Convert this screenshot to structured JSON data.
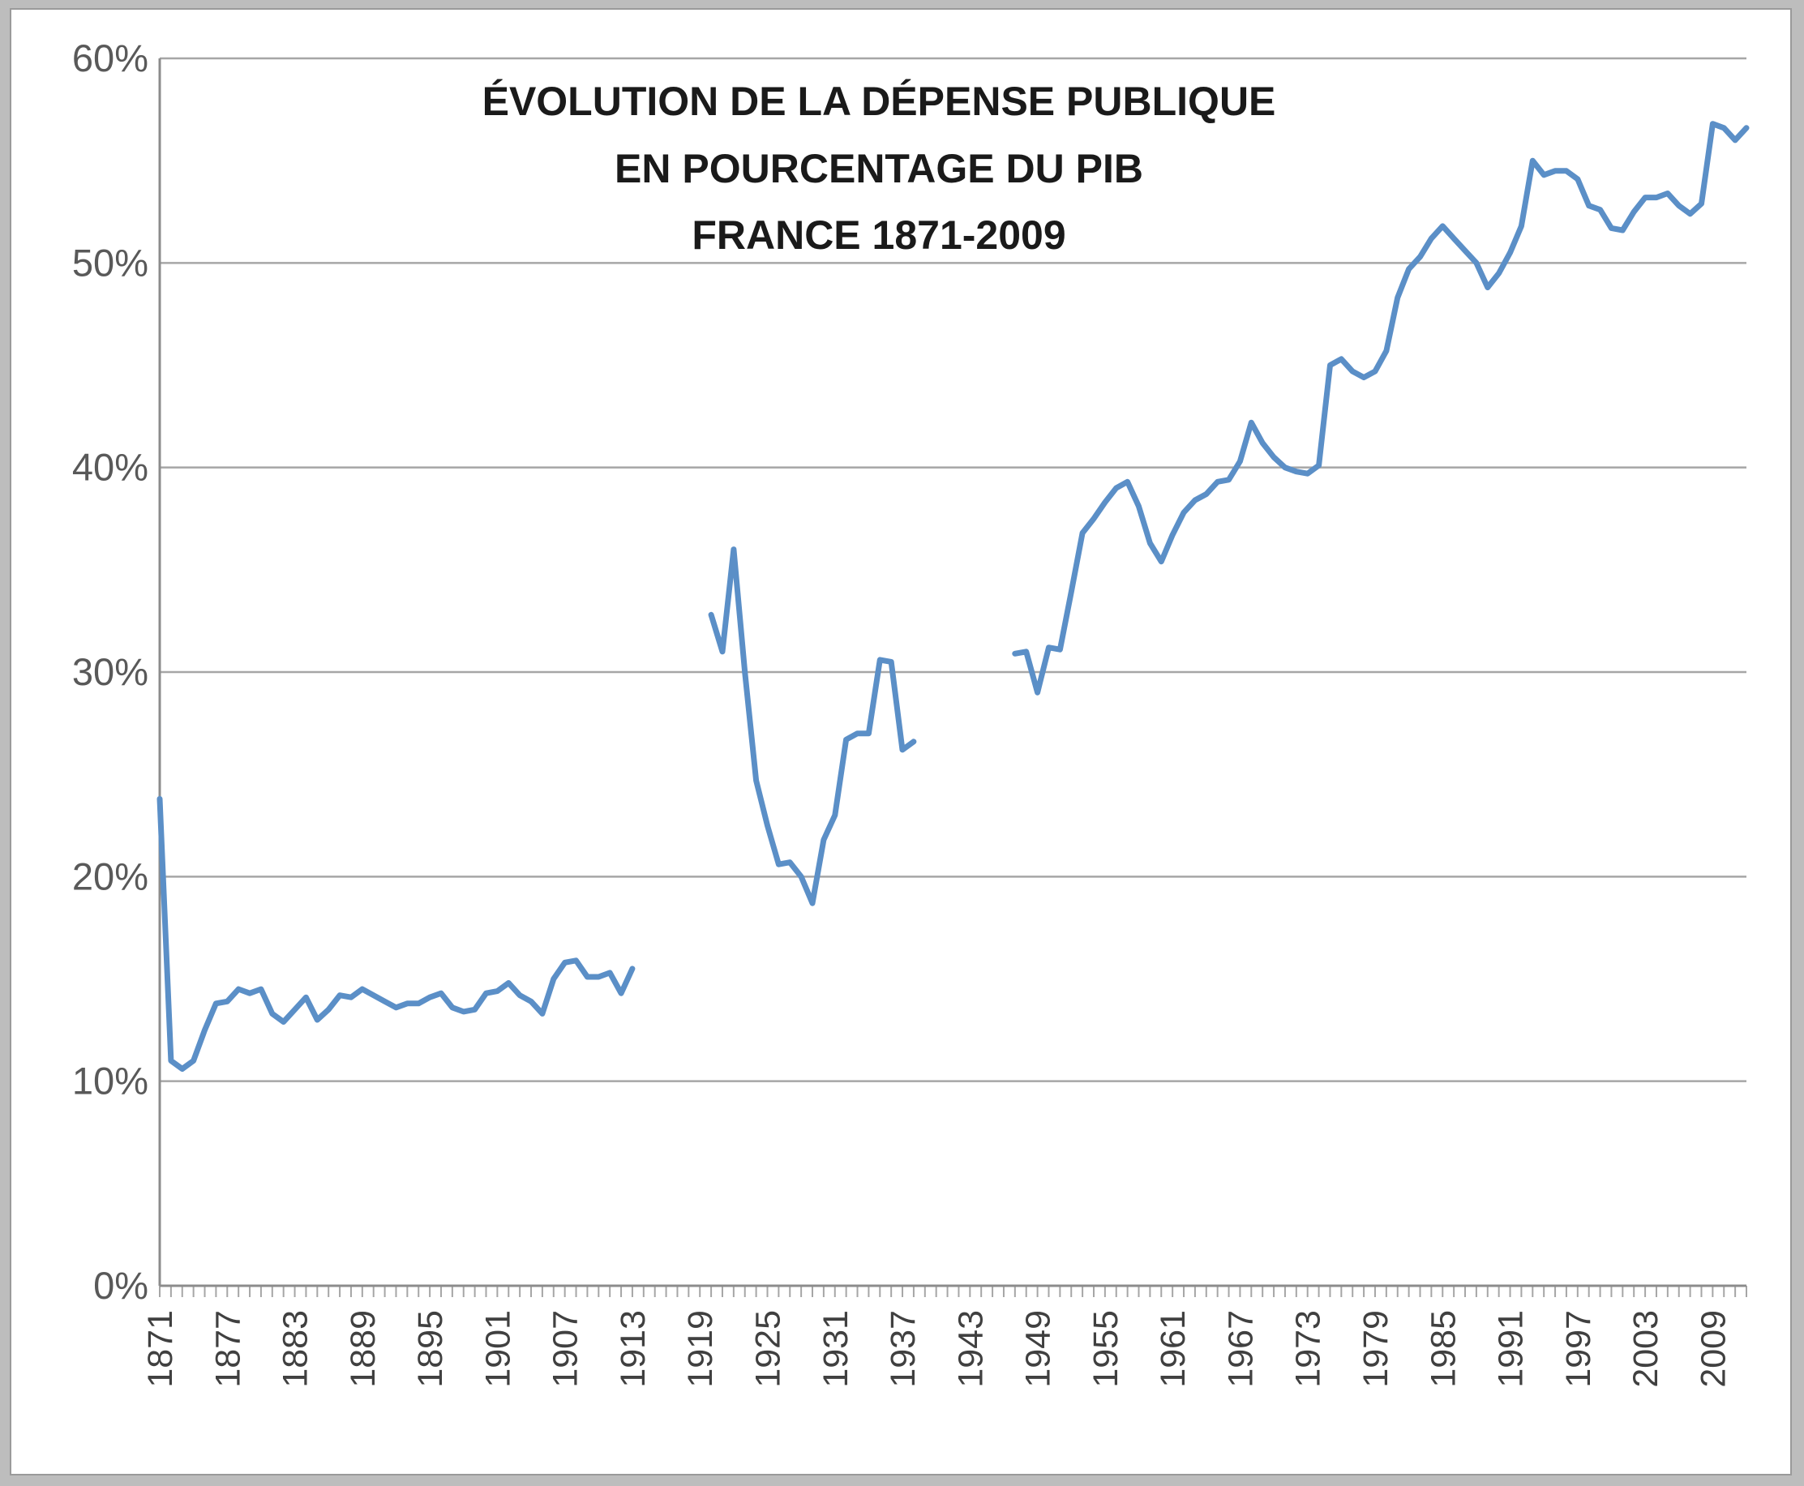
{
  "chart_data": {
    "type": "line",
    "title_lines": [
      "ÉVOLUTION DE LA DÉPENSE PUBLIQUE",
      "EN POURCENTAGE DU PIB",
      "FRANCE 1871-2009"
    ],
    "xlabel": "",
    "ylabel": "",
    "xlim": [
      1871,
      2012
    ],
    "ylim": [
      0,
      60
    ],
    "grid": true,
    "legend": "none",
    "y_ticks": [
      {
        "value": 0,
        "label": "0%"
      },
      {
        "value": 10,
        "label": "10%"
      },
      {
        "value": 20,
        "label": "20%"
      },
      {
        "value": 30,
        "label": "30%"
      },
      {
        "value": 40,
        "label": "40%"
      },
      {
        "value": 50,
        "label": "50%"
      },
      {
        "value": 60,
        "label": "60%"
      }
    ],
    "x_ticks": [
      {
        "value": 1871,
        "label": "1871"
      },
      {
        "value": 1877,
        "label": "1877"
      },
      {
        "value": 1883,
        "label": "1883"
      },
      {
        "value": 1889,
        "label": "1889"
      },
      {
        "value": 1895,
        "label": "1895"
      },
      {
        "value": 1901,
        "label": "1901"
      },
      {
        "value": 1907,
        "label": "1907"
      },
      {
        "value": 1913,
        "label": "1913"
      },
      {
        "value": 1919,
        "label": "1919"
      },
      {
        "value": 1925,
        "label": "1925"
      },
      {
        "value": 1931,
        "label": "1931"
      },
      {
        "value": 1937,
        "label": "1937"
      },
      {
        "value": 1943,
        "label": "1943"
      },
      {
        "value": 1949,
        "label": "1949"
      },
      {
        "value": 1955,
        "label": "1955"
      },
      {
        "value": 1961,
        "label": "1961"
      },
      {
        "value": 1967,
        "label": "1967"
      },
      {
        "value": 1973,
        "label": "1973"
      },
      {
        "value": 1979,
        "label": "1979"
      },
      {
        "value": 1985,
        "label": "1985"
      },
      {
        "value": 1991,
        "label": "1991"
      },
      {
        "value": 1997,
        "label": "1997"
      },
      {
        "value": 2003,
        "label": "2003"
      },
      {
        "value": 2009,
        "label": "2009"
      }
    ],
    "series_color": "#5b8fc7",
    "segments": [
      {
        "x": [
          1871,
          1872,
          1873,
          1874,
          1875,
          1876,
          1877,
          1878,
          1879,
          1880,
          1881,
          1882,
          1883,
          1884,
          1885,
          1886,
          1887,
          1888,
          1889,
          1890,
          1891,
          1892,
          1893,
          1894,
          1895,
          1896,
          1897,
          1898,
          1899,
          1900,
          1901,
          1902,
          1903,
          1904,
          1905,
          1906,
          1907,
          1908,
          1909,
          1910,
          1911,
          1912,
          1913
        ],
        "y": [
          23.8,
          11.0,
          10.6,
          11.0,
          12.5,
          13.8,
          13.9,
          14.5,
          14.3,
          14.5,
          13.3,
          12.9,
          13.5,
          14.1,
          13.0,
          13.5,
          14.2,
          14.1,
          14.5,
          14.2,
          13.9,
          13.6,
          13.8,
          13.8,
          14.1,
          14.3,
          13.6,
          13.4,
          13.5,
          14.3,
          14.4,
          14.8,
          14.2,
          13.9,
          13.3,
          15.0,
          15.8,
          15.9,
          15.1,
          15.1,
          15.3,
          14.3,
          15.5
        ]
      },
      {
        "x": [
          1920,
          1921,
          1922,
          1923,
          1924,
          1925,
          1926,
          1927,
          1928,
          1929,
          1930,
          1931,
          1932,
          1933,
          1934,
          1935,
          1936,
          1937,
          1938
        ],
        "y": [
          32.8,
          31.0,
          36.0,
          30.0,
          24.7,
          22.5,
          20.6,
          20.7,
          20.0,
          18.7,
          21.8,
          23.0,
          26.7,
          27.0,
          27.0,
          30.6,
          30.5,
          26.2,
          26.6
        ]
      },
      {
        "x": [
          1947,
          1948,
          1949,
          1950,
          1951,
          1952,
          1953,
          1954,
          1955,
          1956,
          1957,
          1958,
          1959,
          1960,
          1961,
          1962,
          1963,
          1964,
          1965,
          1966,
          1967,
          1968,
          1969,
          1970,
          1971,
          1972,
          1973,
          1974,
          1975,
          1976,
          1977,
          1978,
          1979,
          1980,
          1981,
          1982,
          1983,
          1984,
          1985,
          1986,
          1987,
          1988,
          1989,
          1990,
          1991,
          1992,
          1993,
          1994,
          1995,
          1996,
          1997,
          1998,
          1999,
          2000,
          2001,
          2002,
          2003,
          2004,
          2005,
          2006,
          2007,
          2008,
          2009,
          2010,
          2011,
          2012
        ],
        "y": [
          30.9,
          31.0,
          29.0,
          31.2,
          31.1,
          33.9,
          36.8,
          37.5,
          38.3,
          39.0,
          39.3,
          38.1,
          36.3,
          35.4,
          36.7,
          37.8,
          38.4,
          38.7,
          39.3,
          39.4,
          40.3,
          42.2,
          41.2,
          40.5,
          40.0,
          39.8,
          39.7,
          40.1,
          45.0,
          45.3,
          44.7,
          44.4,
          44.7,
          45.7,
          48.3,
          49.7,
          50.3,
          51.2,
          51.8,
          51.2,
          50.6,
          50.0,
          48.8,
          49.5,
          50.5,
          51.8,
          55.0,
          54.3,
          54.5,
          54.5,
          54.1,
          52.8,
          52.6,
          51.7,
          51.6,
          52.5,
          53.2,
          53.2,
          53.4,
          52.8,
          52.4,
          52.9,
          56.8,
          56.6,
          56.0,
          56.6
        ]
      }
    ]
  }
}
